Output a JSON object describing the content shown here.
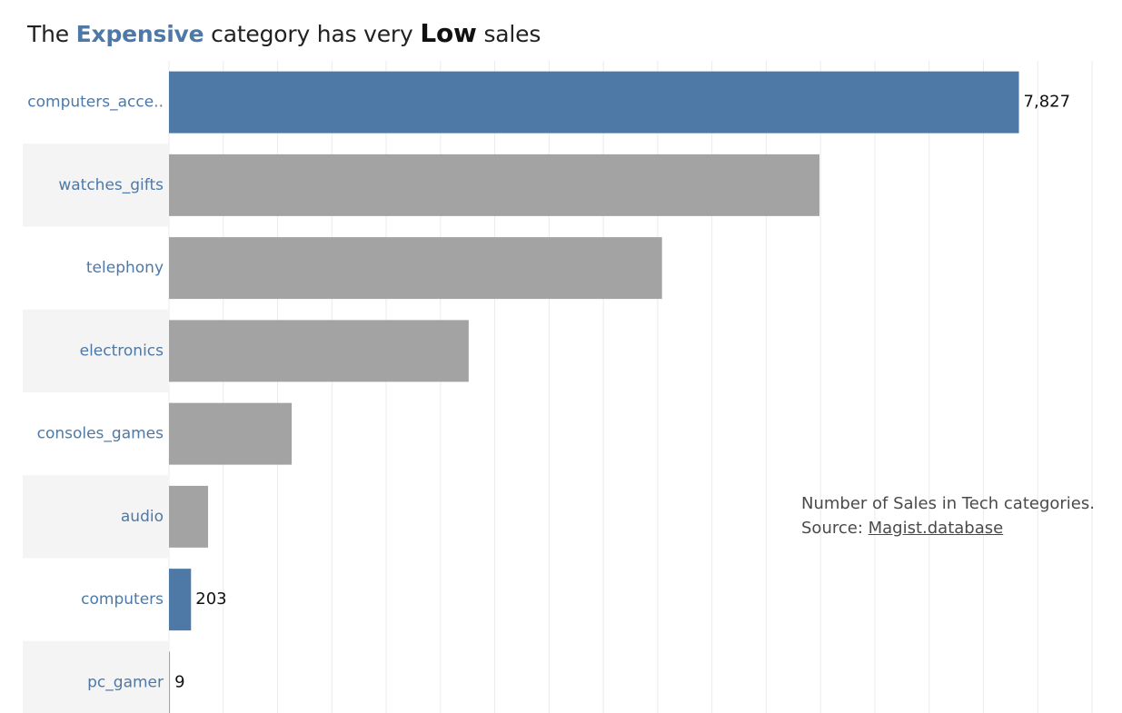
{
  "title": {
    "prefix": "The ",
    "highlight1": "Expensive",
    "middle": " category has very ",
    "highlight2": "Low",
    "suffix": " sales"
  },
  "note": {
    "line1": "Number of Sales in Tech categories.",
    "source_label": "Source: ",
    "source_link": "Magist.database"
  },
  "colors": {
    "highlight": "#4E79A7",
    "default": "#A3A3A3",
    "category_label": "#4E79A7",
    "band": "#F4F4F4",
    "gridline": "#EBEBEB"
  },
  "chart_data": {
    "type": "bar",
    "orientation": "horizontal",
    "categories": [
      "computers_acce..",
      "watches_gifts",
      "telephony",
      "electronics",
      "consoles_games",
      "audio",
      "computers",
      "pc_gamer"
    ],
    "values": [
      7827,
      5990,
      4540,
      2760,
      1130,
      360,
      203,
      9
    ],
    "highlighted": [
      true,
      false,
      false,
      false,
      false,
      false,
      true,
      false
    ],
    "data_labels": [
      "7,827",
      "",
      "",
      "",
      "",
      "",
      "203",
      "9"
    ],
    "xlim": [
      0,
      8500
    ],
    "grid_step": 500,
    "grid": true,
    "legend": "none"
  }
}
